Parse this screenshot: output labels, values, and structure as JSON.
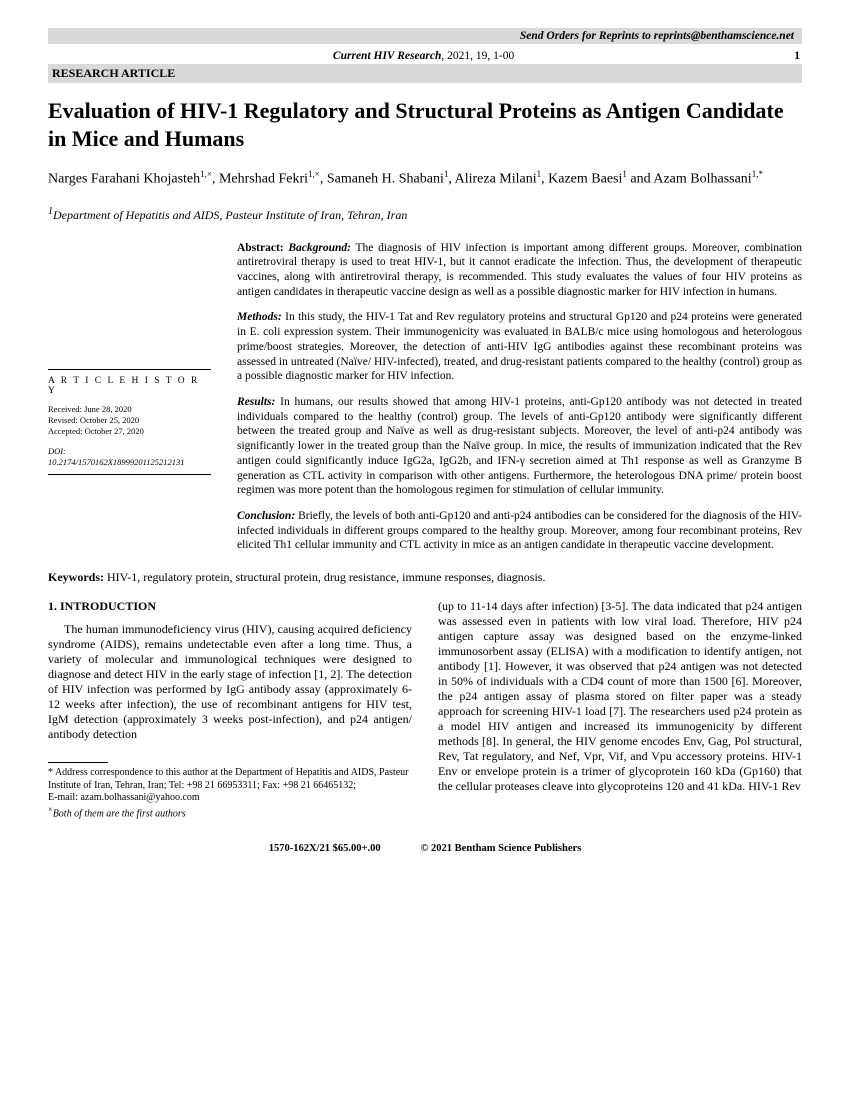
{
  "reprint_banner": "Send Orders for Reprints to reprints@benthamscience.net",
  "journal": {
    "name": "Current HIV Research",
    "year_vol": ", 2021, 19, 1-00",
    "page": "1"
  },
  "section_bar": "RESEARCH ARTICLE",
  "title": "Evaluation of HIV-1 Regulatory and Structural Proteins as Antigen Candidate in Mice and Humans",
  "authors_html": "Narges Farahani Khojasteh<sup>1,×</sup>, Mehrshad Fekri<sup>1,×</sup>, Samaneh H. Shabani<sup>1</sup>, Alireza Milani<sup>1</sup>, Kazem Baesi<sup>1</sup> and Azam Bolhassani<sup>1,*</sup>",
  "affiliation": "Department of Hepatitis and AIDS, Pasteur Institute of Iran, Tehran, Iran",
  "history": {
    "title": "A R T I C L E   H I S T O R Y",
    "received": "Received: June 28, 2020",
    "revised": "Revised: October 25, 2020",
    "accepted": "Accepted: October 27, 2020",
    "doi_label": "DOI:",
    "doi": "10.2174/1570162X18999201125212131"
  },
  "abstract": {
    "background": "The diagnosis of HIV infection is important among different groups. Moreover, combination antiretroviral therapy is used to treat HIV-1, but it cannot eradicate the infection. Thus, the development of therapeutic vaccines, along with antiretroviral therapy, is recommended. This study evaluates the values of four HIV proteins as antigen candidates in therapeutic vaccine design as well as a possible diagnostic marker for HIV infection in humans.",
    "methods": "In this study, the HIV-1 Tat and Rev regulatory proteins and structural Gp120 and p24 proteins were generated in E. coli expression system. Their immunogenicity was evaluated in BALB/c mice using homologous and heterologous prime/boost strategies. Moreover, the detection of anti-HIV IgG antibodies against these recombinant proteins was assessed in untreated (Naïve/ HIV-infected), treated, and drug-resistant patients compared to the healthy (control) group as a possible diagnostic marker for HIV infection.",
    "results": "In humans, our results showed that among HIV-1 proteins, anti-Gp120 antibody was not detected in treated individuals compared to the healthy (control) group. The levels of anti-Gp120 antibody were significantly different between the treated group and Naïve as well as drug-resistant subjects. Moreover, the level of anti-p24 antibody was significantly lower in the treated group than the Naïve group. In mice, the results of immunization indicated that the Rev antigen could significantly induce IgG2a, IgG2b, and IFN-γ secretion aimed at Th1 response as well as Granzyme B generation as CTL activity in comparison with other antigens. Furthermore, the heterologous DNA prime/ protein boost regimen was more potent than the homologous regimen for stimulation of cellular immunity.",
    "conclusion": "Briefly, the levels of both anti-Gp120 and anti-p24 antibodies can be considered for the diagnosis of the HIV-infected individuals in different groups compared to the healthy group. Moreover, among four recombinant proteins, Rev elicited Th1 cellular immunity and CTL activity in mice as an antigen candidate in therapeutic vaccine development."
  },
  "keywords_label": "Keywords:",
  "keywords": " HIV-1, regulatory protein, structural protein, drug resistance, immune responses, diagnosis.",
  "intro_heading": "1. INTRODUCTION",
  "intro_col1": "The human immunodeficiency virus (HIV), causing acquired deficiency syndrome (AIDS), remains undetectable even after a long time. Thus, a variety of molecular and immunological techniques were designed to diagnose and detect HIV in the early stage of infection [1, 2]. The detection of HIV infection was performed by IgG antibody assay (approximately 6-12 weeks after infection), the use of recombinant antigens for HIV test, IgM detection (approximately 3 weeks post-infection), and p24 antigen/ antibody detection",
  "intro_col2": "(up to 11-14 days after infection) [3-5]. The data indicated that p24 antigen was assessed even in patients with low viral load. Therefore, HIV p24 antigen capture assay was designed based on the enzyme-linked immunosorbent assay (ELISA) with a modification to identify antigen, not antibody [1]. However, it was observed that p24 antigen was not detected in 50% of individuals with a CD4 count of more than 1500 [6]. Moreover, the p24 antigen assay of plasma stored on filter paper was a steady approach for screening HIV-1 load [7]. The researchers used p24 protein as a model HIV antigen and increased its immunogenicity by different methods [8]. In general, the HIV genome encodes Env, Gag, Pol structural, Rev, Tat regulatory, and Nef, Vpr, Vif, and Vpu accessory proteins. HIV-1 Env or envelope protein is a trimer of glycoprotein 160 kDa (Gp160) that the cellular proteases cleave into glycoproteins 120 and 41 kDa. HIV-1 Rev",
  "correspondence": {
    "main": "* Address correspondence to this author at the Department of Hepatitis and AIDS, Pasteur Institute of Iran, Tehran, Iran; Tel: +98 21 66953311; Fax: +98 21 66465132;",
    "email": "E-mail: azam.bolhassani@yahoo.com",
    "note": "Both of them are the first authors"
  },
  "footer": {
    "left": "1570-162X/21 $65.00+.00",
    "right": "© 2021 Bentham Science Publishers"
  }
}
